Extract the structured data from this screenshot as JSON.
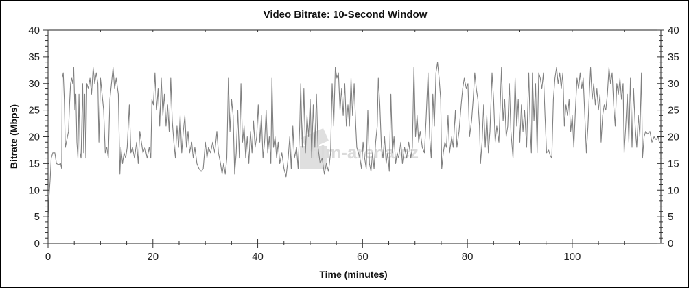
{
  "chart_data": {
    "type": "line",
    "title": "Video Bitrate: 10-Second Window",
    "xlabel": "Time (minutes)",
    "ylabel": "Bitrate (Mbps)",
    "xlim": [
      0,
      116.9
    ],
    "ylim": [
      0,
      40
    ],
    "x_ticks": [
      "0",
      "20",
      "40",
      "60",
      "80",
      "100"
    ],
    "y_ticks": [
      "0",
      "5",
      "10",
      "15",
      "20",
      "25",
      "30",
      "35",
      "40"
    ],
    "y_ticks_right": true,
    "grid": false,
    "line_color": "#808080",
    "watermark": "film-arena.cz",
    "series": [
      {
        "x": [
          0,
          0.2,
          0.4,
          0.6,
          0.9,
          1.3,
          1.6,
          2,
          2.4,
          2.6,
          2.7,
          2.9,
          3.1,
          3.3,
          3.6,
          3.9,
          4.1,
          4.3,
          4.5,
          4.7,
          4.9,
          5.1,
          5.3,
          5.5,
          5.7,
          5.9,
          6.1,
          6.3,
          6.6,
          6.8,
          7.0,
          7.2,
          7.4,
          7.7,
          8.0,
          8.3,
          8.6,
          8.9,
          9.2,
          9.5,
          9.7,
          10.0,
          10.3,
          10.6,
          10.9,
          11.2,
          11.5,
          11.8,
          12.1,
          12.4,
          12.7,
          13.0,
          13.4,
          13.7,
          13.9,
          14.2,
          14.5,
          14.8,
          15.1,
          15.5,
          15.8,
          16.1,
          16.5,
          16.9,
          17.2,
          17.5,
          17.8,
          18.1,
          18.5,
          18.9,
          19.3,
          19.6,
          19.8,
          20.1,
          20.4,
          20.7,
          21.0,
          21.3,
          21.6,
          21.9,
          22.2,
          22.5,
          22.8,
          23.1,
          23.4,
          23.7,
          24.0,
          24.3,
          24.6,
          24.9,
          25.2,
          25.5,
          25.8,
          26.1,
          26.4,
          26.7,
          27.0,
          27.4,
          27.7,
          28.0,
          28.4,
          28.8,
          29.2,
          29.6,
          30.0,
          30.3,
          30.6,
          31.0,
          31.4,
          31.8,
          32.2,
          32.5,
          32.9,
          33.2,
          33.5,
          33.8,
          34.1,
          34.4,
          34.7,
          35.0,
          35.3,
          35.6,
          35.9,
          36.2,
          36.5,
          36.8,
          37.1,
          37.4,
          37.7,
          38.0,
          38.3,
          38.6,
          38.9,
          39.2,
          39.5,
          39.8,
          40.1,
          40.4,
          40.7,
          41.0,
          41.3,
          41.6,
          41.9,
          42.2,
          42.5,
          42.7,
          43.0,
          43.3,
          43.6,
          43.9,
          44.2,
          44.6,
          45.0,
          45.4,
          45.8,
          46.1,
          46.4,
          46.7,
          47.0,
          47.4,
          47.7,
          48.0,
          48.2,
          48.5,
          48.8,
          49.1,
          49.4,
          49.7,
          50.0,
          50.3,
          50.6,
          50.9,
          51.2,
          51.5,
          51.9,
          52.3,
          52.7,
          53.1,
          53.5,
          53.9,
          54.2,
          54.5,
          54.8,
          55.1,
          55.4,
          55.7,
          56.0,
          56.3,
          56.6,
          56.9,
          57.2,
          57.5,
          57.8,
          58.1,
          58.4,
          58.7,
          58.9,
          59.2,
          59.5,
          59.8,
          60.1,
          60.4,
          60.7,
          61.0,
          61.3,
          61.6,
          61.9,
          62.2,
          62.5,
          62.8,
          63.0,
          63.3,
          63.6,
          63.9,
          64.2,
          64.5,
          64.8,
          65.1,
          65.4,
          65.7,
          66.0,
          66.3,
          66.6,
          66.9,
          67.3,
          67.6,
          68.0,
          68.4,
          68.8,
          69.2,
          69.5,
          69.8,
          70.1,
          70.4,
          70.7,
          71.0,
          71.4,
          71.8,
          72.1,
          72.5,
          72.8,
          73.1,
          73.4,
          73.7,
          74.0,
          74.3,
          74.6,
          74.9,
          75.1,
          75.4,
          75.7,
          76.0,
          76.3,
          76.6,
          77.0,
          77.3,
          77.7,
          78.0,
          78.4,
          78.8,
          79.1,
          79.4,
          79.8,
          80.1,
          80.4,
          80.8,
          81.1,
          81.4,
          81.7,
          82.0,
          82.3,
          82.5,
          82.8,
          83.1,
          83.4,
          83.7,
          84.0,
          84.3,
          84.7,
          85.0,
          85.3,
          85.6,
          86.0,
          86.5,
          86.8,
          87.1,
          87.4,
          87.7,
          88.0,
          88.3,
          88.7,
          89.1,
          89.4,
          89.7,
          90.0,
          90.3,
          90.6,
          90.9,
          91.3,
          91.7,
          92.0,
          92.2,
          92.4,
          92.7,
          93.0,
          93.3,
          93.6,
          93.9,
          94.2,
          94.5,
          94.8,
          95.1,
          95.5,
          95.8,
          96.1,
          96.4,
          96.7,
          97.0,
          97.3,
          97.6,
          97.9,
          98.2,
          98.5,
          98.8,
          99.1,
          99.4,
          99.7,
          100.0,
          100.3,
          100.6,
          100.9,
          101.2,
          101.5,
          101.8,
          102.1,
          102.4,
          102.7,
          103.0,
          103.3,
          103.5,
          103.8,
          104.1,
          104.4,
          104.7,
          105.0,
          105.3,
          105.5,
          105.8,
          106.1,
          106.4,
          106.7,
          107.0,
          107.3,
          107.6,
          107.9,
          108.2,
          108.5,
          108.8,
          109.1,
          109.4,
          109.7,
          109.9,
          110.2,
          110.5,
          110.8,
          111.1,
          111.4,
          111.7,
          112.0,
          112.3,
          112.6,
          112.9,
          113.2,
          113.4,
          113.7,
          114.0,
          114.4,
          114.8,
          115.2,
          115.6,
          116.0,
          116.4,
          116.6
        ],
        "y": [
          5,
          9,
          12,
          16,
          17,
          17,
          15,
          14.8,
          15,
          14,
          31,
          32,
          27,
          18,
          19.5,
          21,
          26,
          30,
          31,
          30,
          33,
          25,
          28,
          19,
          16,
          28,
          17,
          16,
          30,
          17,
          28,
          16,
          30,
          29,
          31,
          28,
          33,
          30,
          32,
          30,
          19,
          31,
          28,
          25,
          17,
          18,
          16,
          27,
          30,
          33,
          29,
          31,
          28,
          13,
          18,
          15,
          17,
          16,
          18,
          26,
          17,
          18,
          16,
          19,
          15,
          21,
          19,
          17,
          18,
          16,
          18,
          16,
          27,
          26,
          32,
          25,
          29,
          22,
          31,
          24,
          28,
          22,
          26,
          21,
          31,
          23,
          19,
          16,
          22,
          18,
          24,
          17,
          21,
          24,
          18,
          21,
          17,
          19,
          16,
          18,
          15,
          14,
          13.5,
          14,
          19,
          16,
          18,
          17,
          19,
          17,
          21,
          17,
          15,
          13,
          15,
          13,
          16,
          31,
          21,
          27,
          24,
          13,
          17,
          25,
          16,
          30,
          19,
          22,
          16,
          20,
          15,
          21,
          17,
          23,
          18,
          20,
          26,
          19,
          24,
          16,
          19,
          25,
          17,
          20,
          15,
          31,
          18,
          20,
          16,
          19,
          15,
          17,
          14,
          12.5,
          16,
          20,
          14,
          22,
          16,
          18,
          14,
          22,
          30,
          18,
          29,
          17,
          24,
          20,
          27,
          16,
          26,
          18,
          28,
          18,
          15,
          16,
          13,
          15,
          13.5,
          17,
          30,
          22,
          33,
          31,
          32,
          25,
          29,
          24,
          30,
          22,
          26,
          22,
          31,
          24,
          30,
          22,
          18,
          17,
          16,
          14,
          19,
          16,
          14,
          25,
          15,
          13.5,
          17,
          14,
          19,
          22,
          31,
          26,
          18,
          16,
          20,
          15,
          17,
          13.5,
          28,
          17,
          20,
          15,
          17,
          16,
          19,
          15,
          18,
          16,
          19,
          16,
          18,
          33,
          20,
          24,
          19,
          21,
          18,
          17,
          23,
          32,
          20,
          16,
          28,
          22,
          32,
          34,
          31,
          27,
          14,
          17,
          19,
          18,
          24,
          17,
          20,
          18,
          25,
          18,
          21,
          26,
          29,
          31,
          29,
          30,
          20,
          23,
          27,
          32,
          29,
          27,
          22,
          15,
          19,
          26,
          18,
          24,
          17,
          21,
          32,
          27,
          19,
          22,
          19,
          33,
          23,
          27,
          20,
          22,
          30,
          21,
          16,
          31,
          22,
          27,
          19,
          26,
          21,
          25,
          18,
          32,
          21,
          17,
          32,
          23,
          30,
          17,
          32,
          31,
          29,
          32,
          24,
          17,
          17.5,
          16.5,
          16,
          27,
          31,
          33,
          30,
          32,
          29,
          32,
          22,
          26,
          24,
          27,
          21,
          24,
          18,
          25,
          31,
          29,
          32,
          29,
          31,
          24,
          17,
          22,
          29,
          33,
          27,
          30,
          26,
          29,
          25,
          28,
          19,
          24,
          26,
          25,
          28,
          33,
          30,
          32,
          26,
          22,
          30,
          28,
          31,
          27,
          30,
          17,
          22,
          28,
          19,
          31,
          18,
          29,
          22,
          18,
          24,
          20,
          32,
          16,
          20,
          21,
          20.5,
          21,
          19,
          20,
          19.5,
          20,
          19
        ]
      }
    ]
  }
}
